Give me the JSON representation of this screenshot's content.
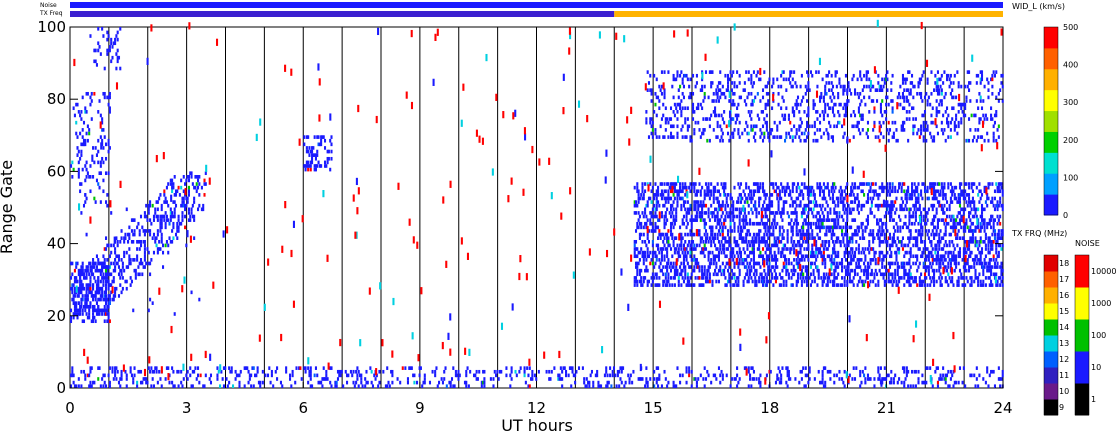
{
  "chart_data": {
    "type": "heatmap",
    "title": "",
    "xlabel": "UT hours",
    "ylabel": "Range Gate",
    "xlim": [
      0,
      24
    ],
    "ylim": [
      0,
      100
    ],
    "xticks": [
      "0",
      "3",
      "6",
      "9",
      "12",
      "15",
      "18",
      "21",
      "24"
    ],
    "yticks": [
      "0",
      "20",
      "40",
      "60",
      "80",
      "100"
    ],
    "grid": "vertical lines each hour",
    "top_strips": [
      {
        "name": "Noise",
        "segments": [
          {
            "from": 0,
            "to": 24,
            "color": "#1a1aff"
          }
        ]
      },
      {
        "name": "TX Freq",
        "segments": [
          {
            "from": 0,
            "to": 14,
            "color": "#3b1fd0"
          },
          {
            "from": 14,
            "to": 24,
            "color": "#ffb300"
          }
        ]
      }
    ],
    "colorbars": [
      {
        "name": "WID_L (km/s)",
        "ticks": [
          "0",
          "100",
          "200",
          "300",
          "400",
          "500"
        ],
        "colors": [
          "#1a1aff",
          "#00a0ff",
          "#00e0d0",
          "#00d000",
          "#a0e000",
          "#ffff00",
          "#ffb000",
          "#ff6000",
          "#ff0000"
        ]
      },
      {
        "name": "TX FRQ (MHz)",
        "ticks": [
          "9",
          "10",
          "11",
          "12",
          "13",
          "14",
          "15",
          "16",
          "17",
          "18"
        ],
        "colors": [
          "#000000",
          "#6a1a8a",
          "#3020c0",
          "#0060ff",
          "#00d0e0",
          "#00c000",
          "#ffff00",
          "#ffb000",
          "#ff6000",
          "#e00000"
        ]
      },
      {
        "name": "NOISE",
        "ticks": [
          "1",
          "10",
          "100",
          "1000",
          "10000"
        ],
        "colors": [
          "#000000",
          "#1a1aff",
          "#00c000",
          "#ffff00",
          "#ff0000"
        ]
      }
    ],
    "regions": [
      {
        "x": [
          0,
          1
        ],
        "y": [
          18,
          35
        ],
        "density": 0.9,
        "color": "#1a1aff"
      },
      {
        "x": [
          0.2,
          3.5
        ],
        "y": [
          20,
          60
        ],
        "density": 0.55,
        "color": "#1a1aff",
        "diag": true
      },
      {
        "x": [
          0,
          1
        ],
        "y": [
          50,
          82
        ],
        "density": 0.25,
        "color": "#1a1aff"
      },
      {
        "x": [
          0.5,
          1.3
        ],
        "y": [
          88,
          100
        ],
        "density": 0.35,
        "color": "#1a1aff"
      },
      {
        "x": [
          6,
          6.7
        ],
        "y": [
          60,
          70
        ],
        "density": 0.6,
        "color": "#1a1aff"
      },
      {
        "x": [
          14.5,
          24
        ],
        "y": [
          28,
          57
        ],
        "density": 0.75,
        "color": "#1a1aff"
      },
      {
        "x": [
          14.8,
          24
        ],
        "y": [
          68,
          88
        ],
        "density": 0.35,
        "color": "#1a1aff"
      },
      {
        "x": [
          0,
          24
        ],
        "y": [
          0,
          6
        ],
        "density": 0.35,
        "color": "#1a1aff"
      }
    ]
  }
}
